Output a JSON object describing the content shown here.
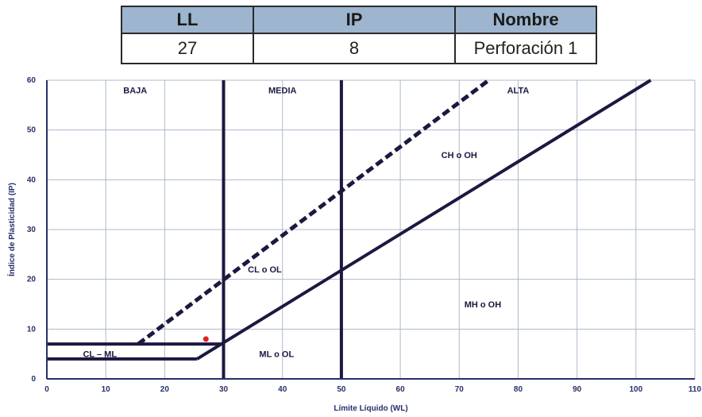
{
  "table": {
    "headers": [
      "LL",
      "IP",
      "Nombre"
    ],
    "row": [
      "27",
      "8",
      "Perforación 1"
    ]
  },
  "chart_data": {
    "type": "line",
    "title": "",
    "xlabel": "Límite Líquido (WL)",
    "ylabel": "Índice de Plasticidad (IP)",
    "xlim": [
      0,
      110
    ],
    "ylim": [
      0,
      60
    ],
    "xticks": [
      0,
      10,
      20,
      30,
      40,
      50,
      60,
      70,
      80,
      90,
      100,
      110
    ],
    "yticks": [
      0,
      10,
      20,
      30,
      40,
      50,
      60
    ],
    "grid": true,
    "series": [
      {
        "style": "solid",
        "points": [
          [
            25.5,
            4
          ],
          [
            102.5,
            60
          ]
        ]
      },
      {
        "style": "dashed",
        "points": [
          [
            15.5,
            7
          ],
          [
            75,
            60
          ]
        ]
      },
      {
        "style": "solid",
        "points": [
          [
            0,
            7
          ],
          [
            29.5,
            7
          ]
        ]
      },
      {
        "style": "solid",
        "points": [
          [
            0,
            4
          ],
          [
            25.5,
            4
          ]
        ]
      },
      {
        "style": "solid",
        "points": [
          [
            30,
            0
          ],
          [
            30,
            60
          ]
        ]
      },
      {
        "style": "solid",
        "points": [
          [
            50,
            0
          ],
          [
            50,
            60
          ]
        ]
      }
    ],
    "point": {
      "x": 27,
      "y": 8,
      "color": "#e02020"
    },
    "regions": [
      {
        "label": "BAJA",
        "x": 15,
        "y": 58
      },
      {
        "label": "MEDIA",
        "x": 40,
        "y": 58
      },
      {
        "label": "ALTA",
        "x": 80,
        "y": 58
      },
      {
        "label": "CH o OH",
        "x": 70,
        "y": 45
      },
      {
        "label": "CL o OL",
        "x": 37,
        "y": 22
      },
      {
        "label": "MH o OH",
        "x": 74,
        "y": 15
      },
      {
        "label": "ML o OL",
        "x": 39,
        "y": 5
      },
      {
        "label": "CL – ML",
        "x": 9,
        "y": 5
      }
    ],
    "colors": {
      "line": "#1c1840",
      "grid": "#aeb8cc",
      "axis": "#26306a",
      "tick": "#26306a"
    }
  }
}
